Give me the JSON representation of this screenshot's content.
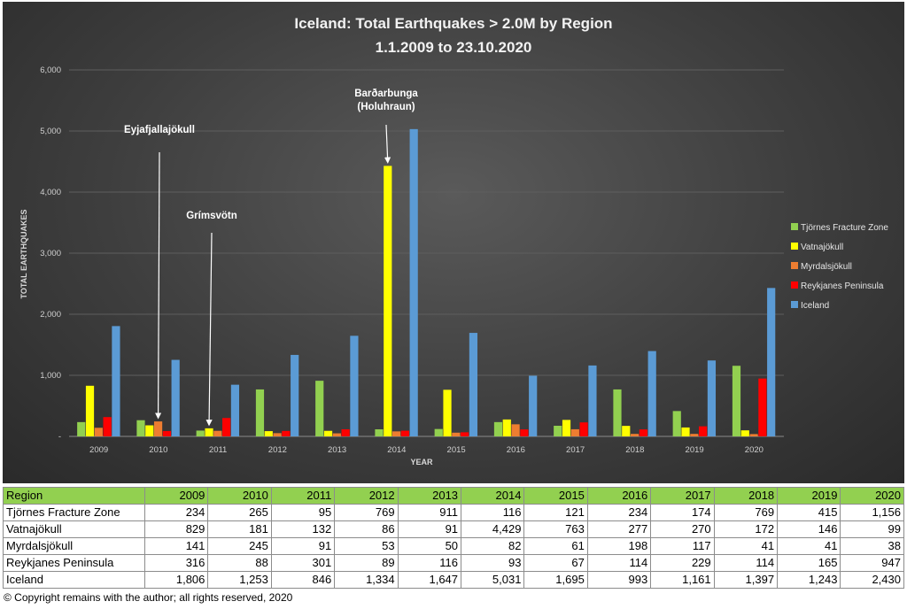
{
  "chart_data": {
    "type": "bar",
    "title": "Iceland: Total Earthquakes > 2.0M by Region",
    "subtitle": "1.1.2009 to 23.10.2020",
    "xlabel": "YEAR",
    "ylabel": "TOTAL EARTHQUAKES",
    "ylim": [
      0,
      6000
    ],
    "yticks": [
      "6,000",
      "5,000",
      "4,000",
      "3,000",
      "2,000",
      "1,000",
      "-"
    ],
    "ytick_values": [
      6000,
      5000,
      4000,
      3000,
      2000,
      1000,
      0
    ],
    "legend_position": "right",
    "categories": [
      "2009",
      "2010",
      "2011",
      "2012",
      "2013",
      "2014",
      "2015",
      "2016",
      "2017",
      "2018",
      "2019",
      "2020"
    ],
    "series": [
      {
        "name": "Tjörnes Fracture Zone",
        "color": "#92d050",
        "values": [
          234,
          265,
          95,
          769,
          911,
          116,
          121,
          234,
          174,
          769,
          415,
          1156
        ]
      },
      {
        "name": "Vatnajökull",
        "color": "#ffff00",
        "values": [
          829,
          181,
          132,
          86,
          91,
          4429,
          763,
          277,
          270,
          172,
          146,
          99
        ]
      },
      {
        "name": "Myrdalsjökull",
        "color": "#ed7d31",
        "values": [
          141,
          245,
          91,
          53,
          50,
          82,
          61,
          198,
          117,
          41,
          41,
          38
        ]
      },
      {
        "name": "Reykjanes Peninsula",
        "color": "#ff0000",
        "values": [
          316,
          88,
          301,
          89,
          116,
          93,
          67,
          114,
          229,
          114,
          165,
          947
        ]
      },
      {
        "name": "Iceland",
        "color": "#5b9bd5",
        "values": [
          1806,
          1253,
          846,
          1334,
          1647,
          5031,
          1695,
          993,
          1161,
          1397,
          1243,
          2430
        ]
      }
    ],
    "annotations": [
      {
        "label": "Eyjafjallajökull",
        "year": "2010",
        "series": "Myrdalsjökull"
      },
      {
        "label": "Grímsvötn",
        "year": "2011",
        "series": "Vatnajökull"
      },
      {
        "label": "Barðarbunga",
        "label2": "(Holuhraun)",
        "year": "2014",
        "series": "Vatnajökull"
      }
    ]
  },
  "table": {
    "header_label": "Region",
    "rows": [
      {
        "label": "Tjörnes Fracture Zone",
        "values": [
          "234",
          "265",
          "95",
          "769",
          "911",
          "116",
          "121",
          "234",
          "174",
          "769",
          "415",
          "1,156"
        ]
      },
      {
        "label": "Vatnajökull",
        "values": [
          "829",
          "181",
          "132",
          "86",
          "91",
          "4,429",
          "763",
          "277",
          "270",
          "172",
          "146",
          "99"
        ]
      },
      {
        "label": "Myrdalsjökull",
        "values": [
          "141",
          "245",
          "91",
          "53",
          "50",
          "82",
          "61",
          "198",
          "117",
          "41",
          "41",
          "38"
        ]
      },
      {
        "label": "Reykjanes Peninsula",
        "values": [
          "316",
          "88",
          "301",
          "89",
          "116",
          "93",
          "67",
          "114",
          "229",
          "114",
          "165",
          "947"
        ]
      },
      {
        "label": "Iceland",
        "values": [
          "1,806",
          "1,253",
          "846",
          "1,334",
          "1,647",
          "5,031",
          "1,695",
          "993",
          "1,161",
          "1,397",
          "1,243",
          "2,430"
        ]
      }
    ]
  },
  "footer": {
    "copyright": "© Copyright remains with the author; all rights reserved, 2020"
  }
}
